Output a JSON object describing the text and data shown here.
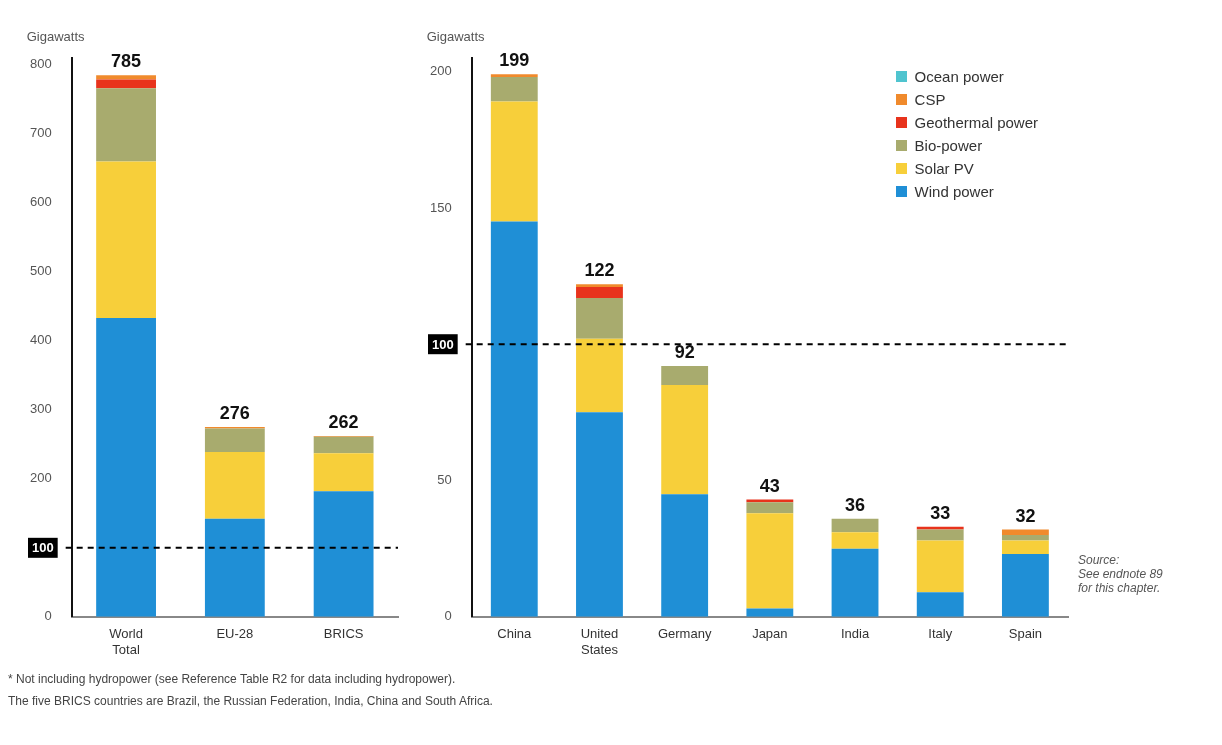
{
  "chart_data": [
    {
      "type": "bar",
      "ylabel": "Gigawatts",
      "categories": [
        "World Total",
        "EU-28",
        "BRICS"
      ],
      "stacked": true,
      "series": [
        {
          "color": "#1f8fd6",
          "values": [
            433,
            142,
            182
          ]
        },
        {
          "color": "#f7cf3a",
          "values": [
            227,
            97,
            55
          ]
        },
        {
          "color": "#a8ab6e",
          "values": [
            106,
            34,
            24
          ]
        },
        {
          "color": "#e8331c",
          "values": [
            13,
            null,
            0
          ]
        },
        {
          "color": "#f08a2c",
          "values": [
            6,
            2,
            1
          ]
        }
      ],
      "totals": [
        "785",
        "276",
        "262"
      ],
      "ylim": [
        0,
        810
      ],
      "yticks": [
        0,
        200,
        300,
        400,
        500,
        600,
        700,
        800
      ],
      "ref_lines": [
        {
          "axis": "y",
          "value": 100,
          "label": "100",
          "line_style": "dashed",
          "color": "#000000"
        }
      ],
      "legend": false,
      "annotations": [
        "* Not including hydropower (see Reference Table R2 for data including hydropower).",
        "The five BRICS countries are Brazil, the Russian Federation, India, China and South Africa."
      ]
    },
    {
      "type": "bar",
      "ylabel": "Gigawatts",
      "categories": [
        "China",
        "United States",
        "Germany",
        "Japan",
        "India",
        "Italy",
        "Spain"
      ],
      "stacked": true,
      "series": [
        {
          "name": "Wind power",
          "color": "#1f8fd6",
          "values": [
            145,
            75,
            45,
            3,
            25,
            9,
            23
          ]
        },
        {
          "name": "Solar PV",
          "color": "#f7cf3a",
          "values": [
            44,
            27,
            40,
            35,
            6,
            19,
            5
          ]
        },
        {
          "name": "Bio-power",
          "color": "#a8ab6e",
          "values": [
            9,
            15,
            7,
            4,
            5,
            4,
            2
          ]
        },
        {
          "name": "Geothermal power",
          "color": "#e8331c",
          "values": [
            0,
            4,
            0,
            1,
            0,
            1,
            0
          ]
        },
        {
          "name": "CSP",
          "color": "#f08a2c",
          "values": [
            1,
            1,
            0,
            0,
            0,
            0,
            2
          ]
        },
        {
          "name": "Ocean power",
          "color": "#4fc4cf",
          "values": [
            0,
            0,
            0,
            0,
            0,
            0,
            0
          ]
        }
      ],
      "totals": [
        "199",
        "122",
        "92",
        "43",
        "36",
        "33",
        "32"
      ],
      "ylim": [
        0,
        205
      ],
      "yticks": [
        0,
        50,
        150,
        200
      ],
      "ref_lines": [
        {
          "axis": "y",
          "value": 100,
          "label": "100",
          "line_style": "dashed",
          "color": "#000000"
        }
      ],
      "legend": "top right",
      "annotations": [
        "Source:\nSee endnote 89\nfor this chapter."
      ]
    }
  ]
}
